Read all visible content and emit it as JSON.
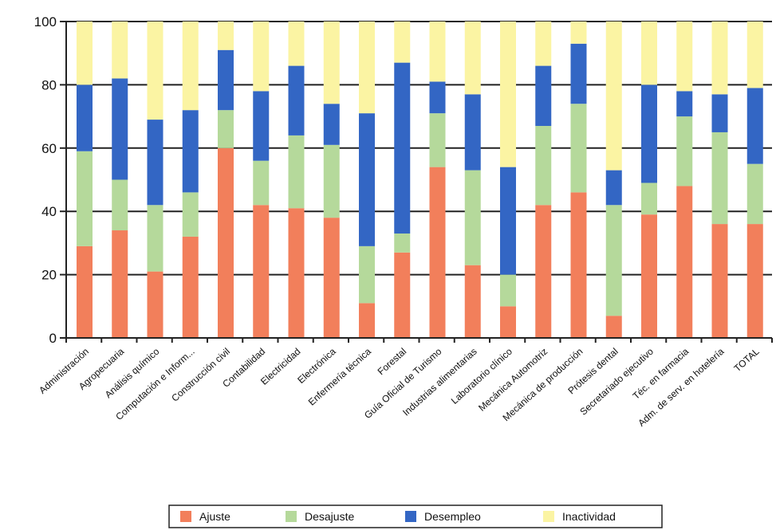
{
  "chart_data": {
    "type": "bar",
    "stacked": true,
    "categories": [
      "Administración",
      "Agropecuaria",
      "Análisis químico",
      "Computación e Inform...",
      "Construcción civil",
      "Contabilidad",
      "Electricidad",
      "Electrónica",
      "Enfermería técnica",
      "Forestal",
      "Guía Oficial de Turismo",
      "Industrias alimentarias",
      "Laboratorio clínico",
      "Mecánica Automotriz",
      "Mecánica de producción",
      "Prótesis dental",
      "Secretariado ejecutivo",
      "Téc. en farmacia",
      "Adm. de serv. en hotelería",
      "TOTAL"
    ],
    "series": [
      {
        "name": "Ajuste",
        "values": [
          29,
          34,
          21,
          32,
          60,
          42,
          41,
          38,
          11,
          27,
          54,
          23,
          10,
          42,
          46,
          7,
          39,
          48,
          36,
          36
        ]
      },
      {
        "name": "Desajuste",
        "values": [
          30,
          16,
          21,
          14,
          12,
          14,
          23,
          23,
          18,
          6,
          17,
          30,
          10,
          25,
          28,
          35,
          10,
          22,
          29,
          19
        ]
      },
      {
        "name": "Desempleo",
        "values": [
          21,
          32,
          27,
          26,
          19,
          22,
          22,
          13,
          42,
          54,
          10,
          24,
          34,
          19,
          19,
          11,
          31,
          8,
          12,
          24
        ]
      },
      {
        "name": "Inactividad",
        "values": [
          20,
          18,
          31,
          28,
          9,
          22,
          14,
          26,
          29,
          13,
          19,
          23,
          46,
          14,
          7,
          47,
          20,
          22,
          23,
          21
        ]
      }
    ],
    "colors": [
      "#f27f5b",
      "#b5d99b",
      "#3366c4",
      "#fbf4a3"
    ],
    "ylim": [
      0,
      100
    ],
    "yticks": [
      "0",
      "20",
      "40",
      "60",
      "80",
      "100"
    ],
    "grid": true,
    "legend": "bottom"
  }
}
